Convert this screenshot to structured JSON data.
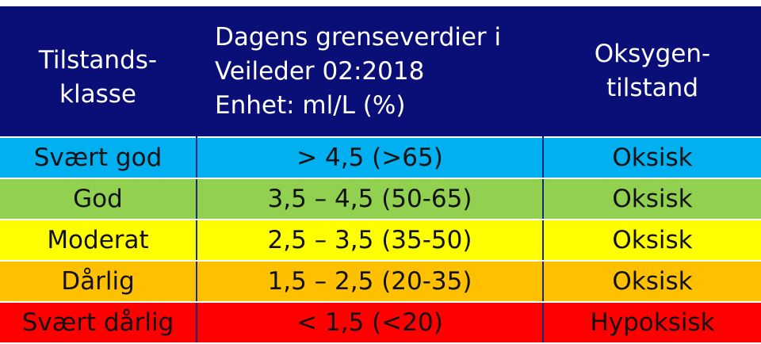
{
  "headers": {
    "col1": [
      "Tilstands-",
      "klasse"
    ],
    "col2": [
      "Dagens grenseverdier i",
      "Veileder 02:2018",
      "Enhet: ml/L (%)"
    ],
    "col3": [
      "Oksygen-",
      "tilstand"
    ]
  },
  "rows": [
    {
      "klasse": "Svært god",
      "verdi": "> 4,5 (>65)",
      "tilstand": "Oksisk",
      "color": "#00b0f0"
    },
    {
      "klasse": "God",
      "verdi": "3,5 – 4,5 (50-65)",
      "tilstand": "Oksisk",
      "color": "#92d050"
    },
    {
      "klasse": "Moderat",
      "verdi": "2,5 – 3,5 (35-50)",
      "tilstand": "Oksisk",
      "color": "#ffff00"
    },
    {
      "klasse": "Dårlig",
      "verdi": "1,5 – 2,5 (20-35)",
      "tilstand": "Oksisk",
      "color": "#ffc000"
    },
    {
      "klasse": "Svært dårlig",
      "verdi": "< 1,5 (<20)",
      "tilstand": "Hypoksisk",
      "color": "#ff0000"
    }
  ]
}
